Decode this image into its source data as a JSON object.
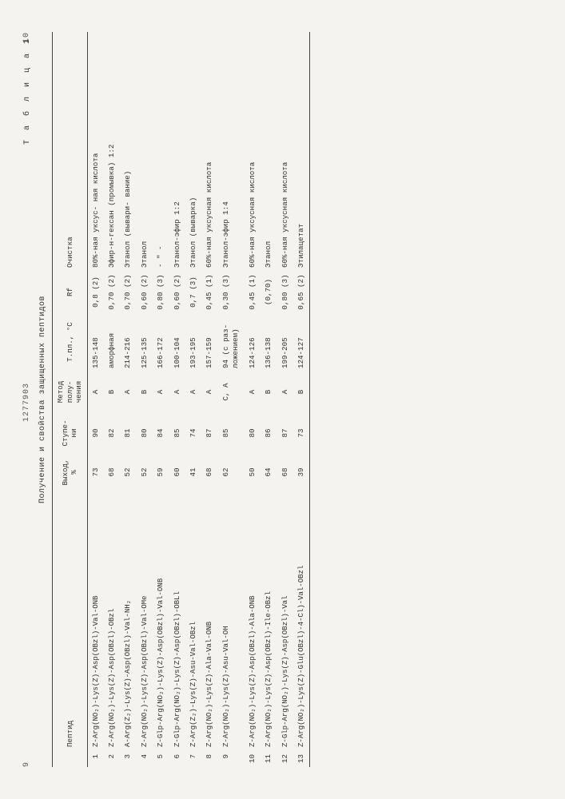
{
  "header": {
    "left_page": "9",
    "center_code": "1277903",
    "right_page": "10"
  },
  "caption": "Получение и свойства защищенных пептидов",
  "table_label": "Т а б л и ц а 1",
  "columns": {
    "peptide": "Пептид",
    "yield": "Выход, %",
    "steps": "Ступе- ни",
    "method": "Метод полу- чения",
    "mp": "Т.пл., °С",
    "rf": "Rf",
    "purification": "Очистка"
  },
  "rows": [
    {
      "n": "1",
      "pep": "Z-Arg(NO₂)-Lys(Z)-Asp(OBzl)-Val-ONB",
      "yield": "73",
      "step": "90",
      "meth": "A",
      "mp": "135-148",
      "rf": "0,8 (2)",
      "pur": "80%-ная уксус- ная кислота"
    },
    {
      "n": "2",
      "pep": "Z-Arg(NO₂)-Lys(Z)-Asp(OBzl)-OBzl",
      "yield": "68",
      "step": "82",
      "meth": "B",
      "mp": "аморфная",
      "rf": "0,70 (2)",
      "pur": "Эфир-н-гексан (промывка) 1:2"
    },
    {
      "n": "3",
      "pep": "A-Arg(Z₂)-Lys(Z)-Asp(OBzl)-Val-NH₂",
      "yield": "52",
      "step": "81",
      "meth": "A",
      "mp": "214-216",
      "rf": "0,70 (2)",
      "pur": "Этанол (вывари- вание)"
    },
    {
      "n": "4",
      "pep": "Z-Arg(NO₂)-Lys(Z)-Asp(OBzl)-Val-OMe",
      "yield": "52",
      "step": "80",
      "meth": "B",
      "mp": "125-135",
      "rf": "0,60 (2)",
      "pur": "Этанол"
    },
    {
      "n": "5",
      "pep": "Z-Glp-Arg(NO₂)-Lys(Z)-Asp(OBzl)-Val-ONB",
      "yield": "59",
      "step": "84",
      "meth": "А",
      "mp": "166-172",
      "rf": "0,80 (3)",
      "pur": "- \" -"
    },
    {
      "n": "6",
      "pep": "Z-Glp-Arg(NO₂)-Lys(Z)-Asp(OBzl)-OBLl",
      "yield": "60",
      "step": "85",
      "meth": "A",
      "mp": "100-104",
      "rf": "0,60 (2)",
      "pur": "Этанол-эфир 1:2"
    },
    {
      "n": "7",
      "pep": "Z-Arg(Z₂)-Lys(Z)-Asu-Val-OBzl",
      "yield": "41",
      "step": "74",
      "meth": "A",
      "mp": "193-195",
      "rf": "0,7 (3)",
      "pur": "Этанол (выварка)"
    },
    {
      "n": "8",
      "pep": "Z-Arg(NO₂)-Lys(Z)-Ala-Val-ONB",
      "yield": "68",
      "step": "87",
      "meth": "A",
      "mp": "157-159",
      "rf": "0,45 (1)",
      "pur": "60%-ная уксусная кислота"
    },
    {
      "n": "9",
      "pep": "Z-Arg(NO₂)-Lys(Z)-Asu-Val-OH",
      "yield": "62",
      "step": "85",
      "meth": "C, A",
      "mp": "94 (с раз- ложением)",
      "rf": "0,30 (3)",
      "pur": "Этанол-эфир 1:4"
    },
    {
      "n": "10",
      "pep": "Z-Arg(NO₂)-Lys(Z)-Asp(OBzl)-Ala-ONB",
      "yield": "50",
      "step": "80",
      "meth": "A",
      "mp": "124-126",
      "rf": "0,45 (1)",
      "pur": "60%-ная уксусная кислота"
    },
    {
      "n": "11",
      "pep": "Z-Arg(NO₂)-Lys(Z)-Asp(OBzl)-Ile-OBzl",
      "yield": "64",
      "step": "86",
      "meth": "B",
      "mp": "136-138",
      "rf": "(0,70)",
      "pur": "Этанол"
    },
    {
      "n": "12",
      "pep": "Z-Glp-Arg(NO₂)-Lys(Z)-Asp(OBzl)-Val",
      "yield": "68",
      "step": "87",
      "meth": "A",
      "mp": "199-205",
      "rf": "0,80 (3)",
      "pur": "60%-ная уксусная кислота"
    },
    {
      "n": "13",
      "pep": "Z-Arg(NO₂)-Lys(Z)-Glu(OBzl)-4-Cl)-Val-OBzl",
      "yield": "39",
      "step": "73",
      "meth": "B",
      "mp": "124-127",
      "rf": "0,65 (2)",
      "pur": "Этилацетат"
    }
  ]
}
